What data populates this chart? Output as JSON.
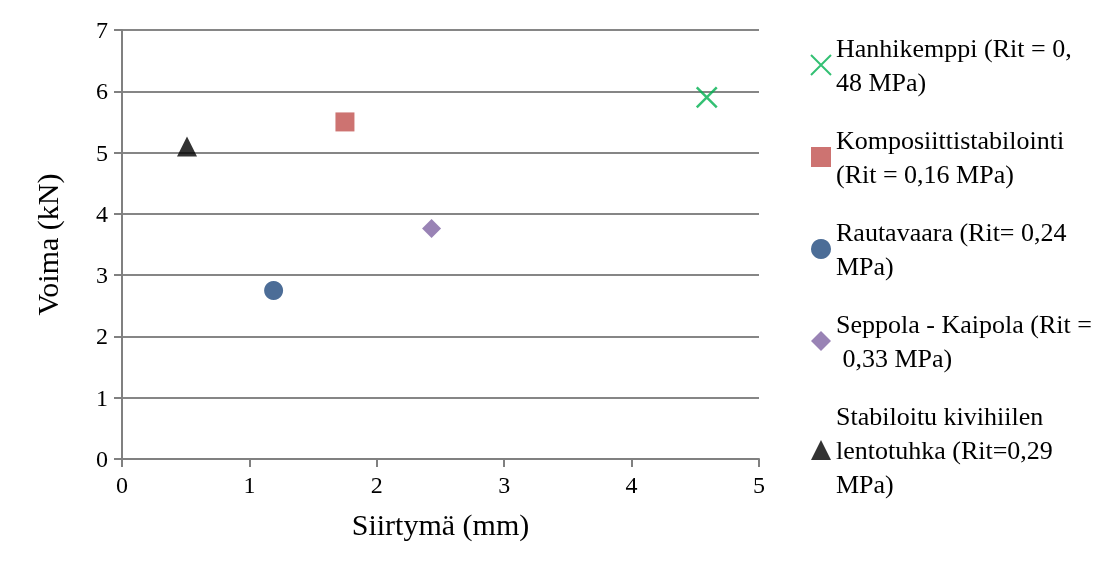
{
  "chart_data": {
    "type": "scatter",
    "xlabel": "Siirtymä (mm)",
    "ylabel": "Voima (kN)",
    "xlim": [
      0,
      5
    ],
    "xticks": [
      0,
      1,
      2,
      3,
      4,
      5
    ],
    "ylim": [
      0,
      7
    ],
    "yticks": [
      0,
      1,
      2,
      3,
      4,
      5,
      6,
      7
    ],
    "grid": "y",
    "legend": "right",
    "series": [
      {
        "name": "Hanhikemppi (Rit = 0,48 MPa)",
        "color": "#00b050",
        "marker": "cross",
        "x": [
          4.59
        ],
        "values": [
          5.9
        ]
      },
      {
        "name": "Komposiittistabilointi (Rit = 0,16 MPa)",
        "color": "#c0504d",
        "marker": "square",
        "x": [
          1.75
        ],
        "values": [
          5.5
        ]
      },
      {
        "name": "Rautavaara (Rit= 0,24 MPa)",
        "color": "#1f497d",
        "marker": "circle",
        "x": [
          1.19
        ],
        "values": [
          2.75
        ]
      },
      {
        "name": "Seppola - Kaipola (Rit = 0,33 MPa)",
        "color": "#8064a2",
        "marker": "diamond",
        "x": [
          2.43
        ],
        "values": [
          3.76
        ]
      },
      {
        "name": "Stabiloitu kivihiilen lentotuhka (Rit=0,29 MPa)",
        "color": "#000000",
        "marker": "triangle",
        "x": [
          0.51
        ],
        "values": [
          5.1
        ]
      }
    ]
  }
}
